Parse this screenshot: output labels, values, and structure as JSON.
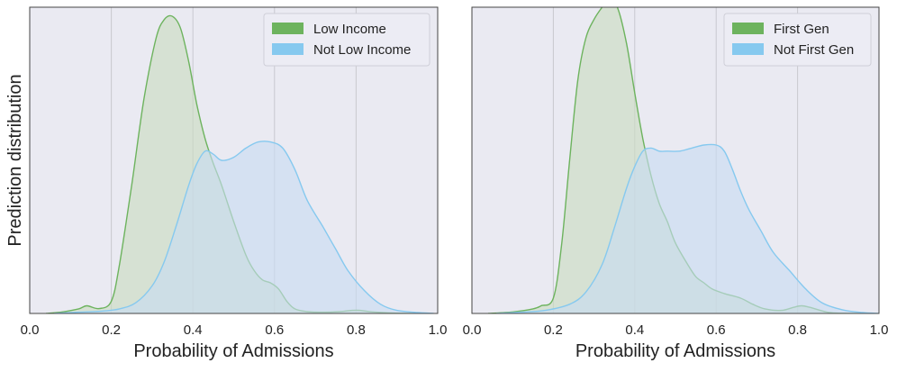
{
  "figure": {
    "ylabel": "Prediction distribution"
  },
  "colors": {
    "panel_bg": "#eaeaf2",
    "grid": "#c8c8cf",
    "green": "#6db35e",
    "green_fill": "#c9dcc0",
    "blue": "#86c9ef",
    "blue_fill": "#c8dcf2"
  },
  "chart_data": [
    {
      "type": "area",
      "xlabel": "Probability of Admissions",
      "ylabel": "Prediction distribution",
      "xlim": [
        0.0,
        1.0
      ],
      "ylim": [
        0,
        1
      ],
      "xticks": [
        "0.0",
        "0.2",
        "0.4",
        "0.6",
        "0.8",
        "1.0"
      ],
      "grid": "vertical",
      "legend_position": "top-right",
      "series": [
        {
          "name": "Low Income",
          "color": "#6db35e",
          "x": [
            0.04,
            0.08,
            0.12,
            0.14,
            0.17,
            0.2,
            0.22,
            0.25,
            0.28,
            0.31,
            0.33,
            0.35,
            0.37,
            0.39,
            0.41,
            0.43,
            0.45,
            0.47,
            0.5,
            0.53,
            0.55,
            0.57,
            0.59,
            0.61,
            0.63,
            0.65,
            0.68,
            0.72,
            0.76,
            0.79,
            0.81,
            0.84,
            0.9,
            0.96
          ],
          "values": [
            0.0,
            0.005,
            0.015,
            0.025,
            0.016,
            0.04,
            0.16,
            0.42,
            0.7,
            0.9,
            0.96,
            0.97,
            0.93,
            0.82,
            0.68,
            0.57,
            0.49,
            0.42,
            0.3,
            0.19,
            0.14,
            0.11,
            0.1,
            0.08,
            0.04,
            0.015,
            0.006,
            0.004,
            0.006,
            0.01,
            0.01,
            0.005,
            0.001,
            0.0
          ]
        },
        {
          "name": "Not Low Income",
          "color": "#86c9ef",
          "x": [
            0.06,
            0.12,
            0.18,
            0.22,
            0.26,
            0.3,
            0.33,
            0.36,
            0.39,
            0.41,
            0.43,
            0.45,
            0.47,
            0.5,
            0.53,
            0.56,
            0.59,
            0.62,
            0.65,
            0.68,
            0.72,
            0.75,
            0.78,
            0.82,
            0.86,
            0.9,
            0.95,
            0.99
          ],
          "values": [
            0.0,
            0.004,
            0.008,
            0.015,
            0.035,
            0.09,
            0.17,
            0.29,
            0.42,
            0.49,
            0.53,
            0.52,
            0.5,
            0.51,
            0.54,
            0.56,
            0.56,
            0.54,
            0.47,
            0.37,
            0.28,
            0.21,
            0.14,
            0.075,
            0.03,
            0.01,
            0.003,
            0.0
          ]
        }
      ]
    },
    {
      "type": "area",
      "xlabel": "Probability of Admissions",
      "xlim": [
        0.0,
        1.0
      ],
      "ylim": [
        0,
        1
      ],
      "xticks": [
        "0.0",
        "0.2",
        "0.4",
        "0.6",
        "0.8",
        "1.0"
      ],
      "grid": "vertical",
      "legend_position": "top-right",
      "series": [
        {
          "name": "First Gen",
          "color": "#6db35e",
          "x": [
            0.04,
            0.1,
            0.15,
            0.17,
            0.2,
            0.22,
            0.24,
            0.26,
            0.28,
            0.3,
            0.32,
            0.34,
            0.36,
            0.38,
            0.4,
            0.42,
            0.44,
            0.46,
            0.48,
            0.5,
            0.53,
            0.55,
            0.57,
            0.59,
            0.62,
            0.66,
            0.69,
            0.72,
            0.76,
            0.79,
            0.81,
            0.83,
            0.87,
            0.9,
            0.95
          ],
          "values": [
            0.0,
            0.005,
            0.015,
            0.025,
            0.05,
            0.22,
            0.5,
            0.76,
            0.9,
            0.96,
            1.0,
            1.03,
            0.99,
            0.88,
            0.72,
            0.57,
            0.45,
            0.36,
            0.3,
            0.23,
            0.16,
            0.12,
            0.1,
            0.08,
            0.065,
            0.05,
            0.03,
            0.015,
            0.01,
            0.02,
            0.025,
            0.02,
            0.005,
            0.001,
            0.0
          ]
        },
        {
          "name": "Not First Gen",
          "color": "#86c9ef",
          "x": [
            0.06,
            0.12,
            0.18,
            0.24,
            0.28,
            0.32,
            0.35,
            0.38,
            0.4,
            0.42,
            0.44,
            0.46,
            0.48,
            0.51,
            0.54,
            0.57,
            0.6,
            0.62,
            0.64,
            0.66,
            0.68,
            0.71,
            0.74,
            0.78,
            0.82,
            0.86,
            0.91,
            0.96,
            1.0
          ],
          "values": [
            0.0,
            0.004,
            0.01,
            0.03,
            0.07,
            0.16,
            0.28,
            0.41,
            0.48,
            0.53,
            0.54,
            0.53,
            0.53,
            0.53,
            0.54,
            0.55,
            0.55,
            0.53,
            0.47,
            0.4,
            0.34,
            0.27,
            0.2,
            0.14,
            0.08,
            0.035,
            0.012,
            0.003,
            0.0
          ]
        }
      ]
    }
  ]
}
